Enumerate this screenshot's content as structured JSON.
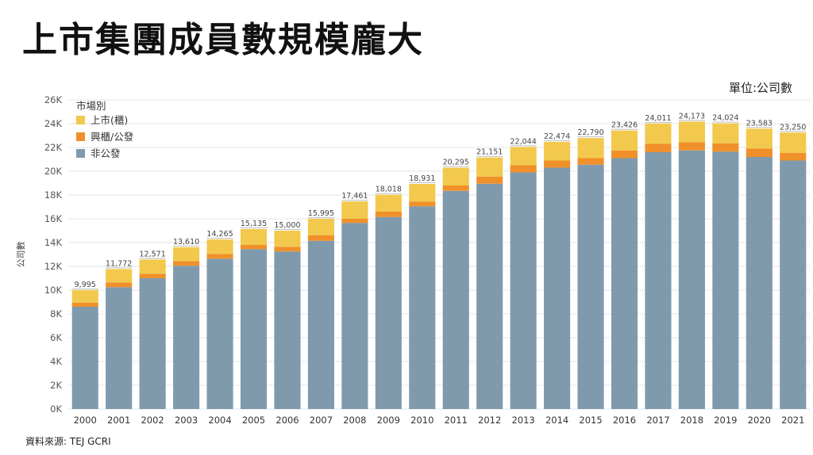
{
  "title": "上市集團成員數規模龐大",
  "unit_label": "單位:公司數",
  "source": "資料來源: TEJ GCRI",
  "chart_data": {
    "type": "bar",
    "stacked": true,
    "categories": [
      "2000",
      "2001",
      "2002",
      "2003",
      "2004",
      "2005",
      "2006",
      "2007",
      "2008",
      "2009",
      "2010",
      "2011",
      "2012",
      "2013",
      "2014",
      "2015",
      "2016",
      "2017",
      "2018",
      "2019",
      "2020",
      "2021"
    ],
    "series": [
      {
        "name": "非公發",
        "color": "#7f9aad",
        "values": [
          8600,
          10250,
          11000,
          12050,
          12650,
          13450,
          13250,
          14150,
          15650,
          16150,
          17050,
          18350,
          18950,
          19900,
          20300,
          20550,
          21100,
          21600,
          21750,
          21650,
          21200,
          20900
        ]
      },
      {
        "name": "興櫃/公發",
        "color": "#f0902a",
        "values": [
          350,
          400,
          380,
          400,
          400,
          350,
          400,
          450,
          350,
          450,
          400,
          450,
          600,
          600,
          600,
          550,
          650,
          700,
          700,
          700,
          700,
          650
        ]
      },
      {
        "name": "上市(櫃)",
        "color": "#f2c94c",
        "values": [
          1045,
          1122,
          1191,
          1160,
          1215,
          1335,
          1350,
          1395,
          1461,
          1418,
          1481,
          1495,
          1601,
          1544,
          1574,
          1690,
          1676,
          1711,
          1723,
          1674,
          1683,
          1700
        ]
      }
    ],
    "totals": [
      "9,995",
      "11,772",
      "12,571",
      "13,610",
      "14,265",
      "15,135",
      "15,000",
      "15,995",
      "17,461",
      "18,018",
      "18,931",
      "20,295",
      "21,151",
      "22,044",
      "22,474",
      "22,790",
      "23,426",
      "24,011",
      "24,173",
      "24,024",
      "23,583",
      "23,250"
    ],
    "ylim": [
      0,
      26000
    ],
    "yticks": [
      0,
      2000,
      4000,
      6000,
      8000,
      10000,
      12000,
      14000,
      16000,
      18000,
      20000,
      22000,
      24000,
      26000
    ],
    "ytick_labels": [
      "0K",
      "2K",
      "4K",
      "6K",
      "8K",
      "10K",
      "12K",
      "14K",
      "16K",
      "18K",
      "20K",
      "22K",
      "24K",
      "26K"
    ],
    "ylabel": "公司數",
    "xlabel": "",
    "legend_title": "市場別",
    "legend_order": [
      "上市(櫃)",
      "興櫃/公發",
      "非公發"
    ],
    "legend_position": "top-left",
    "grid": true
  }
}
